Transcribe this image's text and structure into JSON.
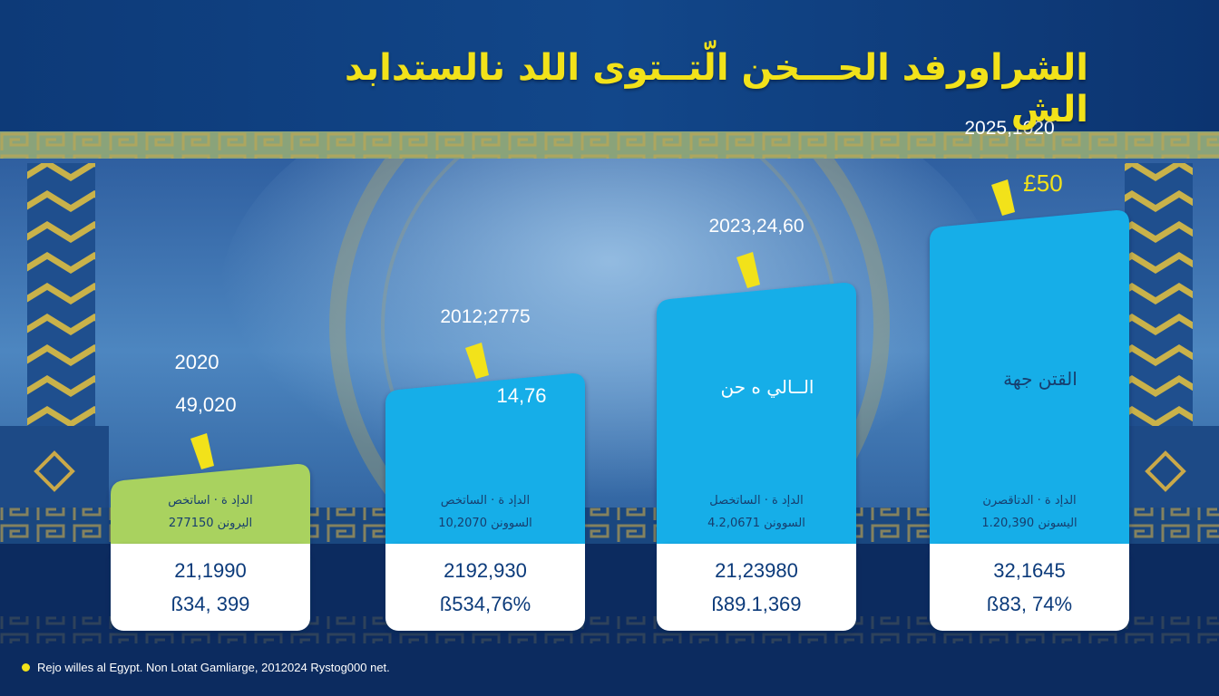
{
  "title": "الشراورفد الحـــخن الّتــتوى اللد نالستدابد الش",
  "source_note": "Rejo willes al Egypt. Non Lotat Gamliarge, 2012024 Rystog000 net.",
  "colors": {
    "accent_yellow": "#f2e21a",
    "bar_green": "#a9d25f",
    "bar_blue": "#13aee8",
    "card_white": "#ffffff",
    "value_text": "#0b3a7a"
  },
  "chart_data": {
    "type": "bar",
    "title": "الشراورفد الحـــخن الّتــتوى اللد نالستدابد الش",
    "xlabel": "",
    "ylabel": "",
    "ylim": [
      0,
      100
    ],
    "grid": false,
    "legend": "none",
    "values": [
      22,
      47,
      72,
      92
    ],
    "bars": [
      {
        "value": 22,
        "color": "#a9d25f",
        "top_label": "2020",
        "top_value": "49,020",
        "inner_value": "",
        "inner_heading": "",
        "caption_line1": "الدإد ة  ·  اساتخص",
        "caption_line2": "اليرونن 277150",
        "card_line1": "21,1990",
        "card_line2": "ß34, 399"
      },
      {
        "value": 47,
        "color": "#13aee8",
        "top_label": "2012;2775",
        "top_value": "",
        "inner_value": "14,76",
        "inner_heading": "",
        "caption_line1": "الدإد ة  ·  الساتخص",
        "caption_line2": "السوونن 10,2070",
        "card_line1": "2192,930",
        "card_line2": "ß534,76%"
      },
      {
        "value": 72,
        "color": "#13aee8",
        "top_label": "2023,24,60",
        "top_value": "",
        "inner_value": "",
        "inner_heading": "الــالي ه حن",
        "caption_line1": "الدإد ة  ·  الساتخصل",
        "caption_line2": "السوونن 4.2,0671",
        "card_line1": "21,23980",
        "card_line2": "ß89.1,369"
      },
      {
        "value": 92,
        "color": "#13aee8",
        "top_label": "2025,1020",
        "top_value": "£50",
        "inner_value": "",
        "inner_heading": "القتن جهة",
        "caption_line1": "الدإد ة  ·  الدتاقصرن",
        "caption_line2": "اليسونن 1.20,390",
        "card_line1": "32,1645",
        "card_line2": "ß83, 74%"
      }
    ]
  }
}
